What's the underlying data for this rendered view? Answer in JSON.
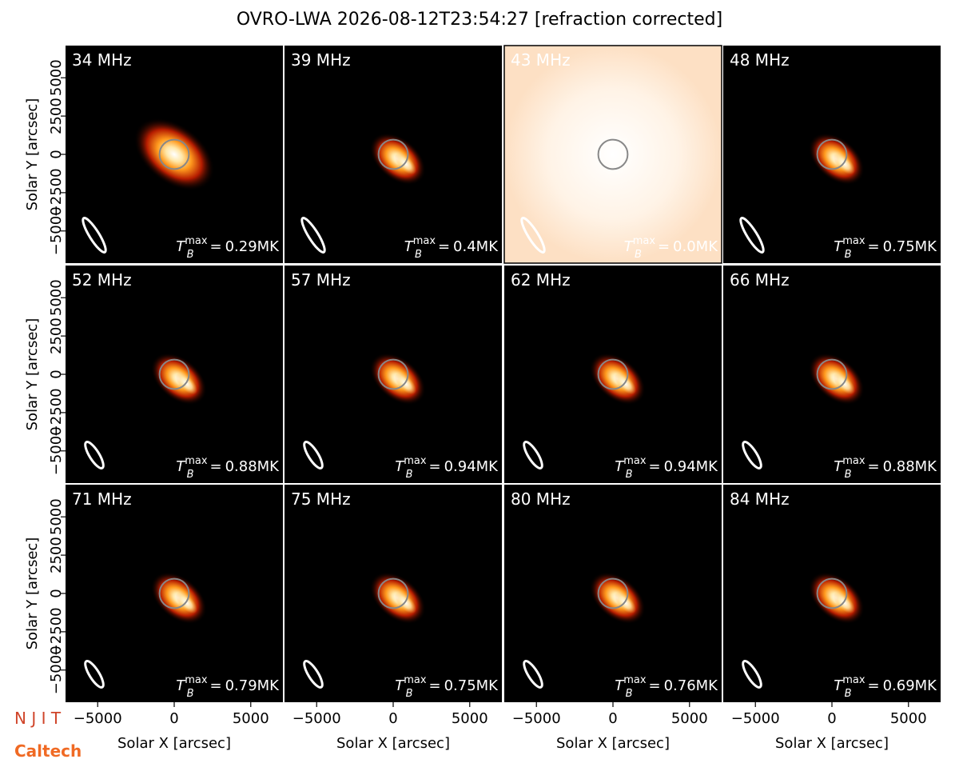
{
  "chart_data": {
    "type": "image-grid",
    "title": "OVRO-LWA 2026-08-12T23:54:27 [refraction corrected]",
    "x_label": "Solar X [arcsec]",
    "y_label": "Solar Y [arcsec]",
    "xlim": [
      -7100,
      7100
    ],
    "ylim": [
      -7100,
      7100
    ],
    "xticks": [
      {
        "value": -5000,
        "label": "−5000"
      },
      0,
      5000
    ],
    "yticks": [
      {
        "value": -5000,
        "label": "−5000"
      },
      {
        "value": -2500,
        "label": "−2500"
      },
      0,
      2500,
      5000
    ],
    "tb_symbol": "T",
    "tb_sub": "B",
    "tb_sup": "max",
    "tb_eq": "=",
    "panels": [
      {
        "title": "34 MHz",
        "tmax": 0.29,
        "tmax_label": "0.29MK"
      },
      {
        "title": "39 MHz",
        "tmax": 0.4,
        "tmax_label": "0.4MK"
      },
      {
        "title": "43 MHz",
        "tmax": 0.0,
        "tmax_label": "0.0MK"
      },
      {
        "title": "48 MHz",
        "tmax": 0.75,
        "tmax_label": "0.75MK"
      },
      {
        "title": "52 MHz",
        "tmax": 0.88,
        "tmax_label": "0.88MK"
      },
      {
        "title": "57 MHz",
        "tmax": 0.94,
        "tmax_label": "0.94MK"
      },
      {
        "title": "62 MHz",
        "tmax": 0.94,
        "tmax_label": "0.94MK"
      },
      {
        "title": "66 MHz",
        "tmax": 0.88,
        "tmax_label": "0.88MK"
      },
      {
        "title": "71 MHz",
        "tmax": 0.79,
        "tmax_label": "0.79MK"
      },
      {
        "title": "75 MHz",
        "tmax": 0.75,
        "tmax_label": "0.75MK"
      },
      {
        "title": "80 MHz",
        "tmax": 0.76,
        "tmax_label": "0.76MK"
      },
      {
        "title": "84 MHz",
        "tmax": 0.69,
        "tmax_label": "0.69MK"
      }
    ],
    "logos": [
      "N J I T",
      "Caltech"
    ]
  }
}
